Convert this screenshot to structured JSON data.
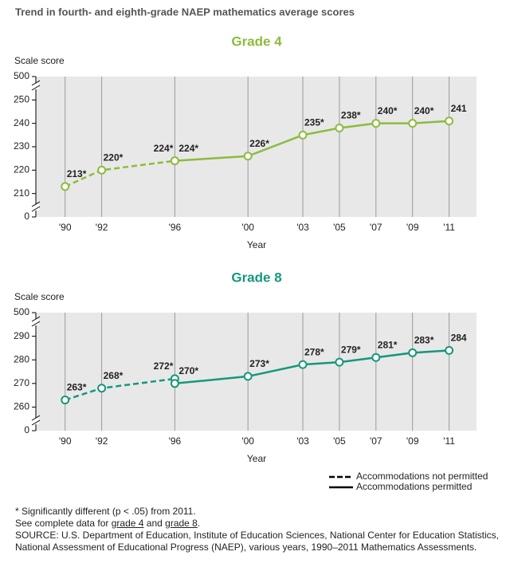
{
  "title": "Trend in fourth- and eighth-grade NAEP mathematics average scores",
  "chart_data": [
    {
      "type": "line",
      "title": "Grade 4",
      "y_label": "Scale score",
      "x_label": "Year",
      "color": "#8dbb3c",
      "xlim": [
        1988.4,
        2012.5
      ],
      "ylim": [
        200,
        260
      ],
      "yticks": [
        0,
        210,
        220,
        230,
        240,
        250,
        500
      ],
      "axis_break": true,
      "xticks": [
        {
          "value": 1990,
          "label": "'90"
        },
        {
          "value": 1992,
          "label": "'92"
        },
        {
          "value": 1996,
          "label": "'96"
        },
        {
          "value": 2000,
          "label": "'00"
        },
        {
          "value": 2003,
          "label": "'03"
        },
        {
          "value": 2005,
          "label": "'05"
        },
        {
          "value": 2007,
          "label": "'07"
        },
        {
          "value": 2009,
          "label": "'09"
        },
        {
          "value": 2011,
          "label": "'11"
        }
      ],
      "series": [
        {
          "dashed": true,
          "x": [
            1990,
            1992,
            1996
          ],
          "values": [
            213,
            220,
            224
          ],
          "value_labels": [
            "213*",
            "220*",
            "224*"
          ]
        },
        {
          "dashed": false,
          "x": [
            1996,
            2000,
            2003,
            2005,
            2007,
            2009,
            2011
          ],
          "values": [
            224,
            226,
            235,
            238,
            240,
            240,
            241
          ],
          "value_labels": [
            "224*",
            "226*",
            "235*",
            "238*",
            "240*",
            "240*",
            "241"
          ]
        }
      ]
    },
    {
      "type": "line",
      "title": "Grade 8",
      "y_label": "Scale score",
      "x_label": "Year",
      "color": "#16977c",
      "xlim": [
        1988.4,
        2012.5
      ],
      "ylim": [
        250,
        300
      ],
      "yticks": [
        0,
        260,
        270,
        280,
        290,
        500
      ],
      "axis_break": true,
      "xticks": [
        {
          "value": 1990,
          "label": "'90"
        },
        {
          "value": 1992,
          "label": "'92"
        },
        {
          "value": 1996,
          "label": "'96"
        },
        {
          "value": 2000,
          "label": "'00"
        },
        {
          "value": 2003,
          "label": "'03"
        },
        {
          "value": 2005,
          "label": "'05"
        },
        {
          "value": 2007,
          "label": "'07"
        },
        {
          "value": 2009,
          "label": "'09"
        },
        {
          "value": 2011,
          "label": "'11"
        }
      ],
      "series": [
        {
          "name": "Accommodations not permitted",
          "dashed": true,
          "x": [
            1990,
            1992,
            1996
          ],
          "values": [
            263,
            268,
            272
          ],
          "value_labels": [
            "263*",
            "268*",
            "272*"
          ]
        },
        {
          "name": "Accommodations permitted",
          "dashed": false,
          "x": [
            1996,
            2000,
            2003,
            2005,
            2007,
            2009,
            2011
          ],
          "values": [
            270,
            273,
            278,
            279,
            281,
            283,
            284
          ],
          "value_labels": [
            "270*",
            "273*",
            "278*",
            "279*",
            "281*",
            "283*",
            "284"
          ]
        }
      ]
    }
  ],
  "footnotes": {
    "significance": "* Significantly different (p < .05) from 2011.",
    "see_data": [
      "See complete data for ",
      "grade 4",
      " and ",
      "grade 8",
      "."
    ],
    "source": "SOURCE: U.S. Department of Education, Institute of Education Sciences, National Center for Education Statistics, National Assessment of Educational Progress (NAEP), various years, 1990–2011 Mathematics Assessments."
  }
}
